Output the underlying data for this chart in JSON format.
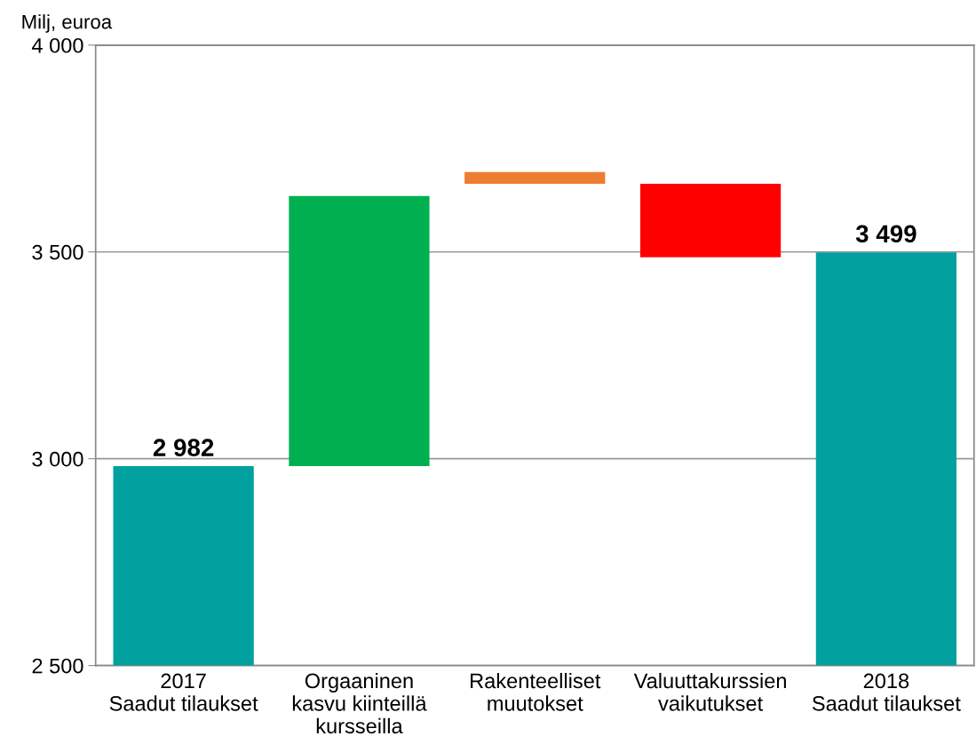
{
  "chart_data": {
    "type": "bar",
    "ylabel": "Milj, euroa",
    "categories": [
      "2017\nSaadut tilaukset",
      "Orgaaninen\nkasvu kiinteillä\nkursseilla",
      "Rakenteelliset\nmuutokset",
      "Valuuttakurssien\nvaikutukset",
      "2018\nSaadut tilaukset"
    ],
    "values": [
      2982,
      653,
      28,
      -178,
      3499
    ],
    "base": [
      0,
      2982,
      3665,
      3665,
      0
    ],
    "colors": [
      "#00a19f",
      "#00b050",
      "#ed7d31",
      "#ff0000",
      "#00a19f"
    ],
    "value_labels": [
      "2 982",
      null,
      null,
      null,
      "3 499"
    ],
    "ylim": [
      2500,
      4000
    ],
    "yticks": [
      {
        "value": 2500,
        "label": "2 500"
      },
      {
        "value": 3000,
        "label": "3 000"
      },
      {
        "value": 3500,
        "label": "3 500"
      },
      {
        "value": 4000,
        "label": "4 000"
      }
    ],
    "grid": "y",
    "legend": false
  }
}
